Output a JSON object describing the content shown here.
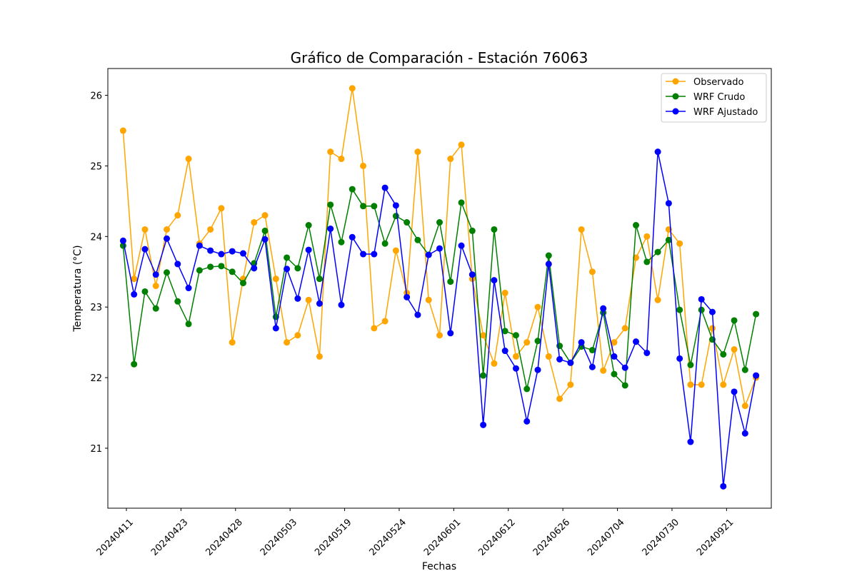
{
  "chart_data": {
    "type": "line",
    "title": "Gráfico de Comparación - Estación 76063",
    "xlabel": "Fechas",
    "ylabel": "Temperatura (°C)",
    "ylim": [
      20.15,
      26.38
    ],
    "yticks": [
      21,
      22,
      23,
      24,
      25,
      26
    ],
    "x_tick_labels": [
      "20240411",
      "20240423",
      "20240428",
      "20240503",
      "20240519",
      "20240524",
      "20240601",
      "20240612",
      "20240626",
      "20240704",
      "20240730",
      "20240921"
    ],
    "x_tick_positions": [
      0.3,
      5.3,
      10.3,
      15.3,
      20.3,
      25.3,
      30.3,
      35.3,
      40.3,
      45.3,
      50.3,
      55.3
    ],
    "x": [
      0,
      1,
      2,
      3,
      4,
      5,
      6,
      7,
      8,
      9,
      10,
      11,
      12,
      13,
      14,
      15,
      16,
      17,
      18,
      19,
      20,
      21,
      22,
      23,
      24,
      25,
      26,
      27,
      28,
      29,
      30,
      31,
      32,
      33,
      34,
      35,
      36,
      37,
      38,
      39,
      40,
      41,
      42,
      43,
      44,
      45,
      46,
      47,
      48,
      49,
      50,
      51,
      52,
      53,
      54,
      55,
      56,
      57,
      58
    ],
    "series": [
      {
        "name": "Observado",
        "color": "#ffa500",
        "values": [
          25.5,
          23.4,
          24.1,
          23.3,
          24.1,
          24.3,
          25.1,
          23.9,
          24.1,
          24.4,
          22.5,
          23.4,
          24.2,
          24.3,
          23.4,
          22.5,
          22.6,
          23.1,
          22.3,
          25.2,
          25.1,
          26.1,
          25.0,
          22.7,
          22.8,
          23.8,
          23.2,
          25.2,
          23.1,
          22.6,
          25.1,
          25.3,
          23.4,
          22.6,
          22.2,
          23.2,
          22.3,
          22.5,
          23.0,
          22.3,
          21.7,
          21.9,
          24.1,
          23.5,
          22.1,
          22.5,
          22.7,
          23.7,
          24.0,
          23.1,
          24.1,
          23.9,
          21.9,
          21.9,
          22.7,
          21.9,
          22.4,
          21.6,
          22.0
        ]
      },
      {
        "name": "WRF Crudo",
        "color": "#008000",
        "values": [
          23.87,
          22.19,
          23.22,
          22.98,
          23.49,
          23.08,
          22.76,
          23.52,
          23.57,
          23.58,
          23.5,
          23.34,
          23.62,
          24.08,
          22.86,
          23.7,
          23.55,
          24.16,
          23.4,
          24.45,
          23.92,
          24.67,
          24.43,
          24.43,
          23.9,
          24.29,
          24.2,
          23.95,
          23.74,
          24.2,
          23.36,
          24.48,
          24.08,
          22.03,
          24.1,
          22.66,
          22.6,
          21.84,
          22.52,
          23.73,
          22.45,
          22.21,
          22.44,
          22.39,
          22.92,
          22.05,
          21.89,
          24.16,
          23.64,
          23.78,
          23.95,
          22.96,
          22.18,
          22.96,
          22.54,
          22.33,
          22.81,
          22.11,
          22.9
        ]
      },
      {
        "name": "WRF Ajustado",
        "color": "#0000ff",
        "values": [
          23.94,
          23.18,
          23.82,
          23.46,
          23.97,
          23.61,
          23.27,
          23.87,
          23.8,
          23.75,
          23.79,
          23.76,
          23.55,
          23.96,
          22.7,
          23.54,
          23.12,
          23.81,
          23.05,
          24.11,
          23.03,
          23.99,
          23.75,
          23.75,
          24.69,
          24.44,
          23.14,
          22.89,
          23.74,
          23.83,
          22.63,
          23.87,
          23.46,
          21.33,
          23.38,
          22.38,
          22.13,
          21.38,
          22.11,
          23.61,
          22.26,
          22.21,
          22.5,
          22.15,
          22.98,
          22.3,
          22.14,
          22.51,
          22.35,
          25.2,
          24.47,
          22.27,
          21.09,
          23.11,
          22.93,
          20.46,
          21.8,
          21.21,
          22.03
        ]
      }
    ],
    "legend_position": "top-right",
    "grid": false
  }
}
